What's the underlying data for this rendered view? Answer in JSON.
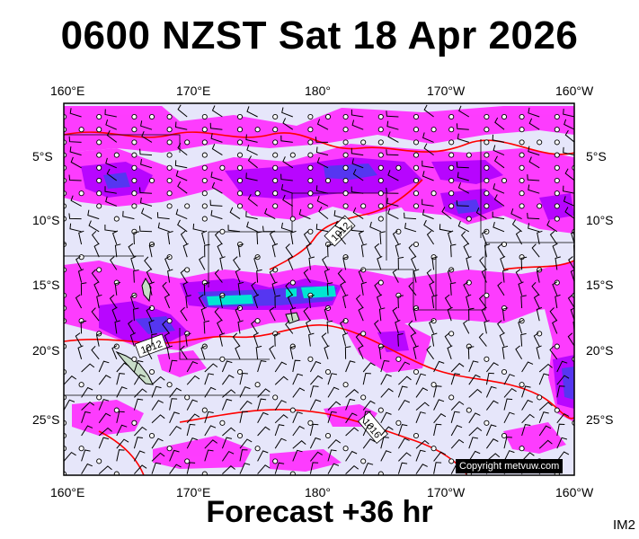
{
  "title": "0600 NZST Sat 18 Apr 2026",
  "footer": "Forecast +36 hr",
  "image_code": "IM2",
  "copyright": "Copyright metvuw.com",
  "longitude_labels": [
    "160°E",
    "170°E",
    "180°",
    "170°W",
    "160°W"
  ],
  "latitude_labels": [
    "5°S",
    "10°S",
    "15°S",
    "20°S",
    "25°S"
  ],
  "isobar_labels": [
    "1012",
    "1012",
    "1016"
  ],
  "colors": {
    "ocean": "#e6e6fa",
    "precip_light": "#ff33ff",
    "precip_medium": "#b000ff",
    "precip_heavy": "#4b3cf0",
    "precip_extreme": "#00e6d2",
    "isobar": "#ff0000",
    "coastline": "#000000",
    "land": "#c8ddc8"
  }
}
